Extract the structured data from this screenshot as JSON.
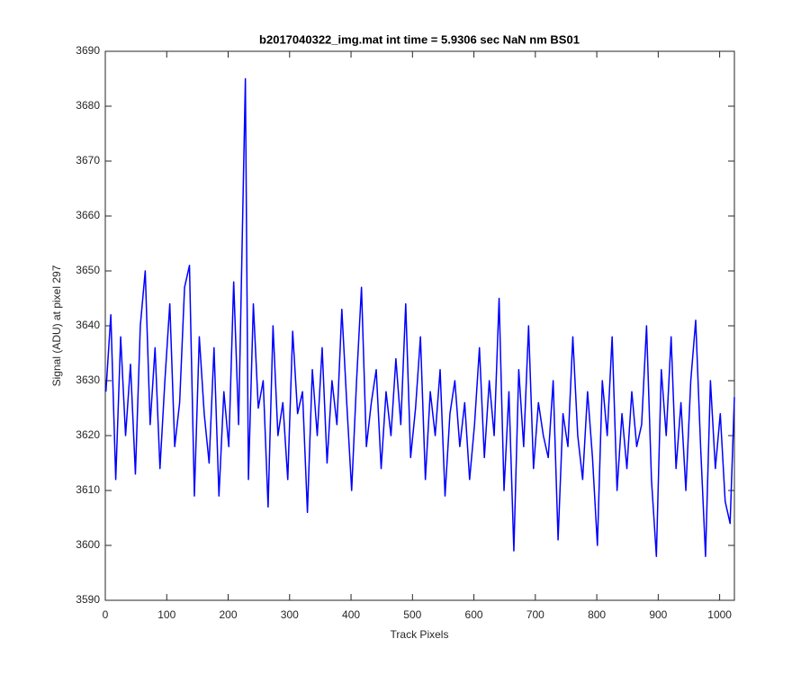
{
  "chart_data": {
    "type": "line",
    "title": "b2017040322_img.mat int time = 5.9306 sec  NaN nm BS01",
    "x_label": "Track Pixels",
    "y_label": "Signal (ADU) at pixel 297",
    "xlim": [
      0,
      1024
    ],
    "ylim": [
      3590,
      3690
    ],
    "xticks": [
      0,
      100,
      200,
      300,
      400,
      500,
      600,
      700,
      800,
      900,
      1000
    ],
    "yticks": [
      3590,
      3600,
      3610,
      3620,
      3630,
      3640,
      3650,
      3660,
      3670,
      3680,
      3690
    ],
    "grid": false,
    "x": [
      1,
      9,
      17,
      25,
      33,
      41,
      49,
      57,
      65,
      73,
      81,
      89,
      97,
      105,
      113,
      121,
      129,
      137,
      145,
      153,
      161,
      169,
      177,
      185,
      193,
      201,
      209,
      217,
      228,
      233,
      241,
      249,
      257,
      265,
      273,
      281,
      289,
      297,
      305,
      313,
      321,
      329,
      337,
      345,
      353,
      361,
      369,
      377,
      385,
      393,
      401,
      409,
      417,
      425,
      433,
      441,
      449,
      457,
      465,
      473,
      481,
      489,
      497,
      505,
      513,
      521,
      529,
      537,
      545,
      553,
      561,
      569,
      577,
      585,
      593,
      601,
      609,
      617,
      625,
      633,
      641,
      649,
      657,
      665,
      673,
      681,
      689,
      697,
      705,
      713,
      721,
      729,
      737,
      745,
      753,
      761,
      769,
      777,
      785,
      793,
      801,
      809,
      817,
      825,
      833,
      841,
      849,
      857,
      865,
      873,
      881,
      889,
      897,
      905,
      913,
      921,
      929,
      937,
      945,
      953,
      961,
      969,
      977,
      985,
      993,
      1001,
      1009,
      1017,
      1024
    ],
    "series": [
      {
        "color": "#0000ff",
        "values": [
          3628,
          3642,
          3612,
          3638,
          3620,
          3633,
          3613,
          3640,
          3650,
          3622,
          3636,
          3614,
          3630,
          3644,
          3618,
          3626,
          3647,
          3651,
          3609,
          3638,
          3624,
          3615,
          3636,
          3609,
          3628,
          3618,
          3648,
          3622,
          3685,
          3612,
          3644,
          3625,
          3630,
          3607,
          3640,
          3620,
          3626,
          3612,
          3639,
          3624,
          3628,
          3606,
          3632,
          3620,
          3636,
          3615,
          3630,
          3622,
          3643,
          3626,
          3610,
          3630,
          3647,
          3618,
          3626,
          3632,
          3614,
          3628,
          3620,
          3634,
          3622,
          3644,
          3616,
          3625,
          3638,
          3612,
          3628,
          3620,
          3632,
          3609,
          3624,
          3630,
          3618,
          3626,
          3612,
          3622,
          3636,
          3616,
          3630,
          3620,
          3645,
          3610,
          3628,
          3599,
          3632,
          3618,
          3640,
          3614,
          3626,
          3620,
          3616,
          3630,
          3601,
          3624,
          3618,
          3638,
          3620,
          3612,
          3628,
          3616,
          3600,
          3630,
          3620,
          3638,
          3610,
          3624,
          3614,
          3628,
          3618,
          3622,
          3640,
          3612,
          3598,
          3632,
          3620,
          3638,
          3614,
          3626,
          3610,
          3630,
          3641,
          3618,
          3598,
          3630,
          3614,
          3624,
          3608,
          3604,
          3627
        ]
      }
    ]
  }
}
